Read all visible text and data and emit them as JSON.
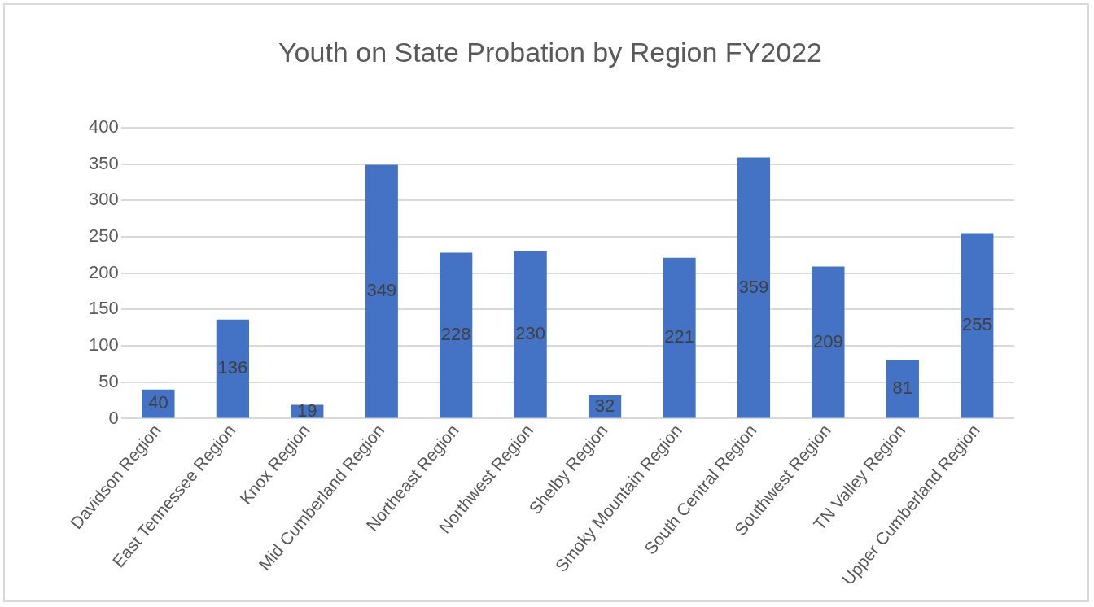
{
  "chart_data": {
    "type": "bar",
    "title": "Youth on State Probation by Region FY2022",
    "categories": [
      "Davidson Region",
      "East Tennessee Region",
      "Knox Region",
      "Mid Cumberland Region",
      "Northeast Region",
      "Northwest Region",
      "Shelby Region",
      "Smoky Mountain Region",
      "South Central Region",
      "Southwest Region",
      "TN Valley Region",
      "Upper Cumberland Region"
    ],
    "values": [
      40,
      136,
      19,
      349,
      228,
      230,
      32,
      221,
      359,
      209,
      81,
      255
    ],
    "color": "#4472c4",
    "ylim": [
      0,
      400
    ],
    "yticks": [
      0,
      50,
      100,
      150,
      200,
      250,
      300,
      350,
      400
    ],
    "grid": "y",
    "data_labels": true
  }
}
